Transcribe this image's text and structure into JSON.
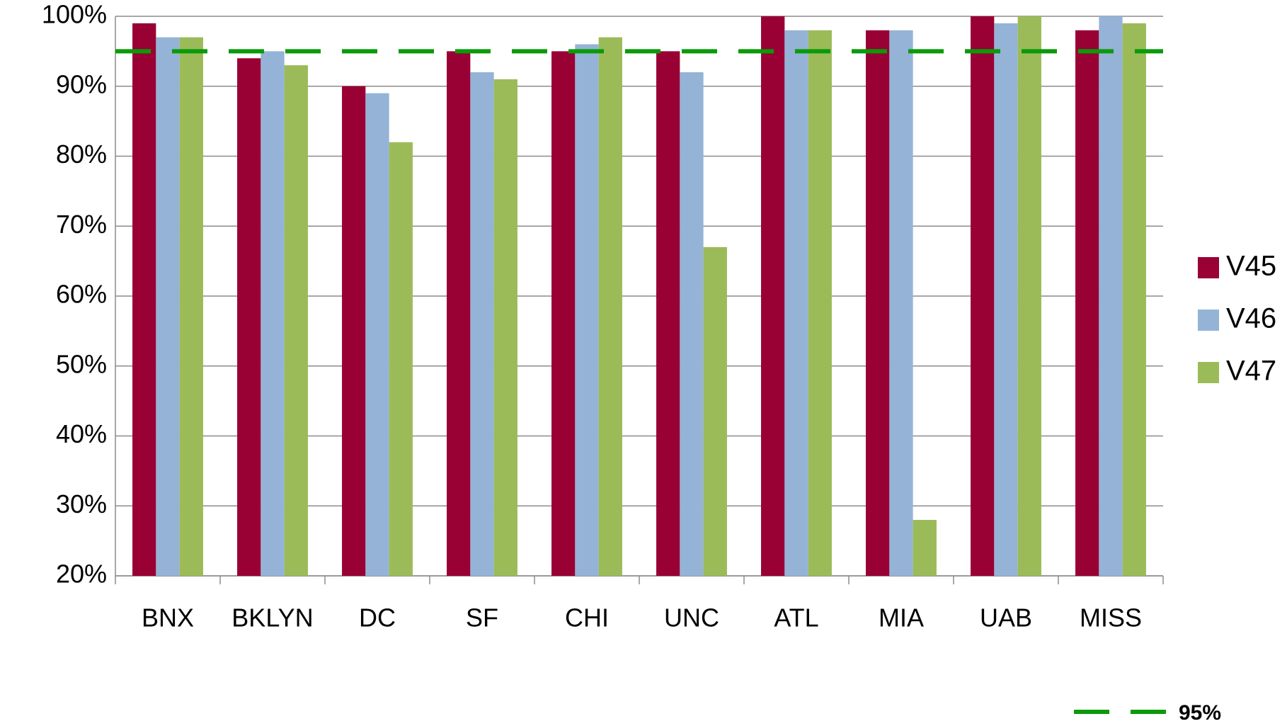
{
  "chart_data": {
    "type": "bar",
    "categories": [
      "BNX",
      "BKLYN",
      "DC",
      "SF",
      "CHI",
      "UNC",
      "ATL",
      "MIA",
      "UAB",
      "MISS"
    ],
    "series": [
      {
        "name": "V45",
        "color": "#990033",
        "values": [
          99,
          94,
          90,
          95,
          95,
          95,
          100,
          98,
          100,
          98
        ]
      },
      {
        "name": "V46",
        "color": "#95b3d7",
        "values": [
          97,
          95,
          89,
          92,
          96,
          92,
          98,
          98,
          99,
          100
        ]
      },
      {
        "name": "V47",
        "color": "#9bbb59",
        "values": [
          97,
          93,
          82,
          91,
          97,
          67,
          98,
          28,
          100,
          99
        ]
      }
    ],
    "ylim": [
      20,
      100
    ],
    "yticks": [
      {
        "value": 20,
        "label": "20%"
      },
      {
        "value": 30,
        "label": "30%"
      },
      {
        "value": 40,
        "label": "40%"
      },
      {
        "value": 50,
        "label": "50%"
      },
      {
        "value": 60,
        "label": "60%"
      },
      {
        "value": 70,
        "label": "70%"
      },
      {
        "value": 80,
        "label": "80%"
      },
      {
        "value": 90,
        "label": "90%"
      },
      {
        "value": 100,
        "label": "100%"
      }
    ],
    "grid": true,
    "reference_line": {
      "value": 95,
      "label": "95%",
      "color": "#0a9a0a"
    }
  }
}
